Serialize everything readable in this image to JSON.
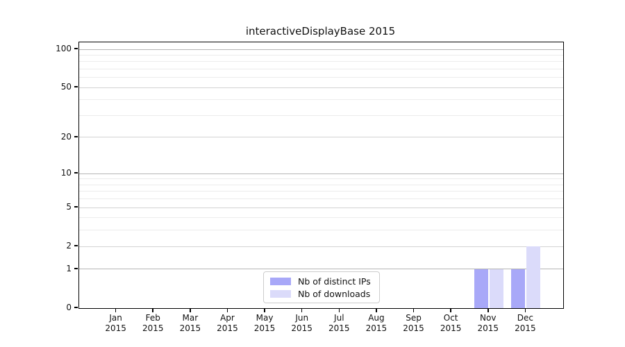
{
  "title": "interactiveDisplayBase 2015",
  "chart_data": {
    "type": "bar",
    "title": "interactiveDisplayBase 2015",
    "categories": [
      "Jan",
      "Feb",
      "Mar",
      "Apr",
      "May",
      "Jun",
      "Jul",
      "Aug",
      "Sep",
      "Oct",
      "Nov",
      "Dec"
    ],
    "year_label": "2015",
    "series": [
      {
        "name": "Nb of distinct IPs",
        "color": "#a8a8f8",
        "values": [
          0,
          0,
          0,
          0,
          0,
          0,
          0,
          0,
          0,
          0,
          1,
          1
        ]
      },
      {
        "name": "Nb of downloads",
        "color": "#dbdbfa",
        "values": [
          0,
          0,
          0,
          0,
          0,
          0,
          0,
          0,
          0,
          0,
          1,
          2
        ]
      }
    ],
    "xlabel": "",
    "ylabel": "",
    "y_axis": {
      "scale": "log10(1+x)",
      "tick_values": [
        0,
        1,
        2,
        5,
        10,
        20,
        50,
        100
      ],
      "minor_tick_values": [
        3,
        4,
        6,
        7,
        8,
        9,
        30,
        40,
        60,
        70,
        80,
        90
      ],
      "decade_values": [
        1,
        10,
        100
      ],
      "top_value": 113
    },
    "grid": "on",
    "legend_position": "bottom-center"
  },
  "colors": {
    "bar_distinct_ips": "#a8a8f8",
    "bar_downloads": "#dbdbfa",
    "grid_minor": "#ececec",
    "grid_major": "#d2d2d2",
    "grid_decade": "#b5b5b5",
    "axis": "#000000",
    "background": "#ffffff"
  }
}
